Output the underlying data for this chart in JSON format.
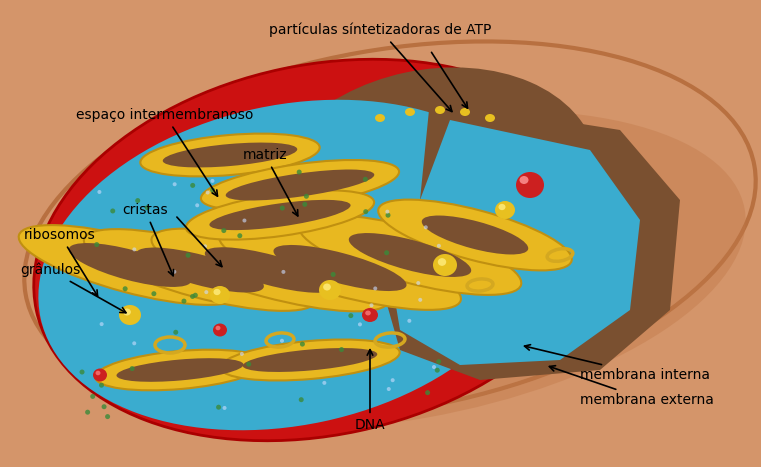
{
  "bg_color": "#ffffff",
  "title": "",
  "labels": {
    "particulas": "partículas síntetizadoras de ATP",
    "espaco": "espaço intermembranoso",
    "matriz": "matriz",
    "cristas": "cristas",
    "ribosomos": "ribosomos",
    "granulos": "grânulos",
    "dna": "DNA",
    "membrana_interna": "membrana interna",
    "membrana_externa": "membrana externa"
  },
  "colors": {
    "outer_body": "#D4956A",
    "outer_body_shadow": "#B87040",
    "red_membrane": "#CC1111",
    "yellow_membrane": "#E8B820",
    "matrix_blue": "#3AACCF",
    "matrix_dark": "#7A5030",
    "text": "#000000",
    "granule_yellow": "#E8C020",
    "granule_red": "#CC2020",
    "dna_ring": "#D4A820",
    "ribosome_green": "#409040",
    "water_white": "#DDEEFF"
  }
}
